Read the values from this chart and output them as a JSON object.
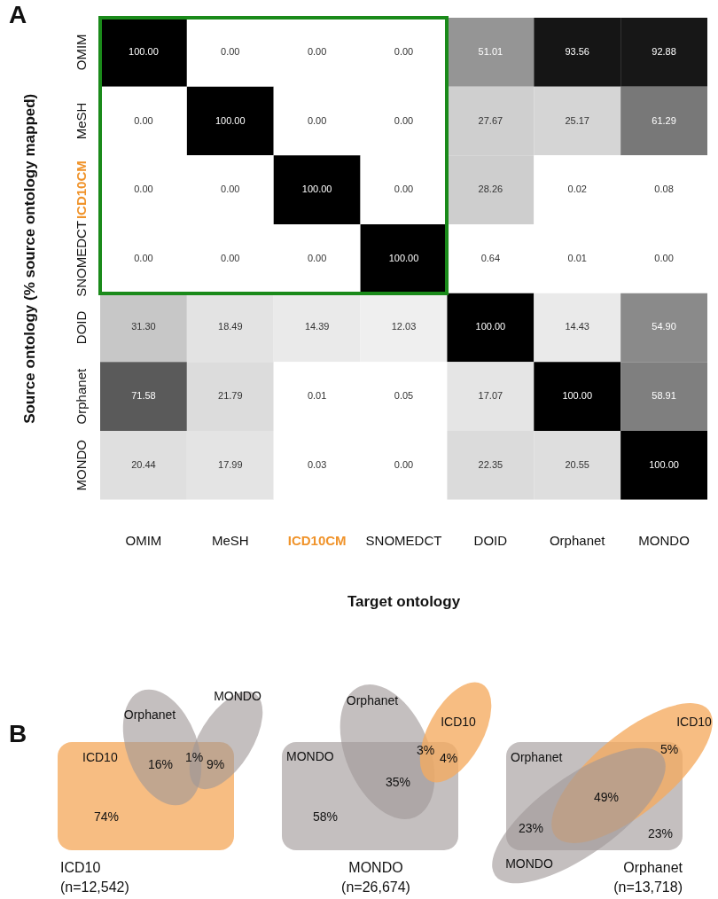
{
  "chart_data": [
    {
      "type": "heatmap",
      "title": "A",
      "xlabel": "Target ontology",
      "ylabel": "Source ontology (% source ontology mapped)",
      "categories": [
        "OMIM",
        "MeSH",
        "ICD10CM",
        "SNOMEDCT",
        "DOID",
        "Orphanet",
        "MONDO"
      ],
      "y_categories": [
        "OMIM",
        "MeSH",
        "ICD10CM",
        "SNOMEDCT",
        "DOID",
        "Orphanet",
        "MONDO"
      ],
      "cells": [
        [
          100,
          0,
          0,
          0,
          51.01,
          93.56,
          92.88
        ],
        [
          0,
          100,
          0,
          0,
          27.67,
          25.17,
          61.29
        ],
        [
          0,
          0,
          100,
          0,
          28.26,
          0.02,
          0.08
        ],
        [
          0,
          0,
          0,
          100,
          0.64,
          0.01,
          0
        ],
        [
          31.3,
          18.49,
          14.39,
          12.03,
          100,
          14.43,
          54.9
        ],
        [
          71.58,
          21.79,
          0.01,
          0.05,
          17.07,
          100,
          58.91
        ],
        [
          20.44,
          17.99,
          0.03,
          0,
          22.35,
          20.55,
          100
        ]
      ],
      "cell_labels": [
        [
          "100.00",
          "0.00",
          "0.00",
          "0.00",
          "51.01",
          "93.56",
          "92.88"
        ],
        [
          "0.00",
          "100.00",
          "0.00",
          "0.00",
          "27.67",
          "25.17",
          "61.29"
        ],
        [
          "0.00",
          "0.00",
          "100.00",
          "0.00",
          "28.26",
          "0.02",
          "0.08"
        ],
        [
          "0.00",
          "0.00",
          "0.00",
          "100.00",
          "0.64",
          "0.01",
          "0.00"
        ],
        [
          "31.30",
          "18.49",
          "14.39",
          "12.03",
          "100.00",
          "14.43",
          "54.90"
        ],
        [
          "71.58",
          "21.79",
          "0.01",
          "0.05",
          "17.07",
          "100.00",
          "58.91"
        ],
        [
          "20.44",
          "17.99",
          "0.03",
          "0.00",
          "22.35",
          "20.55",
          "100.00"
        ]
      ]
    },
    {
      "type": "other",
      "title": "B",
      "xlabel": "ICD10\n(n=12,542)",
      "annotations": [
        "ICD10",
        "Orphanet",
        "MONDO",
        "74%",
        "16%",
        "1%",
        "9%"
      ]
    },
    {
      "type": "other",
      "xlabel": "MONDO\n(n=26,674)",
      "annotations": [
        "MONDO",
        "Orphanet",
        "ICD10",
        "58%",
        "35%",
        "3%",
        "4%"
      ]
    },
    {
      "type": "other",
      "xlabel": "Orphanet\n(n=13,718)",
      "annotations": [
        "Orphanet",
        "ICD10",
        "MONDO",
        "5%",
        "49%",
        "23%",
        "23%"
      ]
    }
  ]
}
